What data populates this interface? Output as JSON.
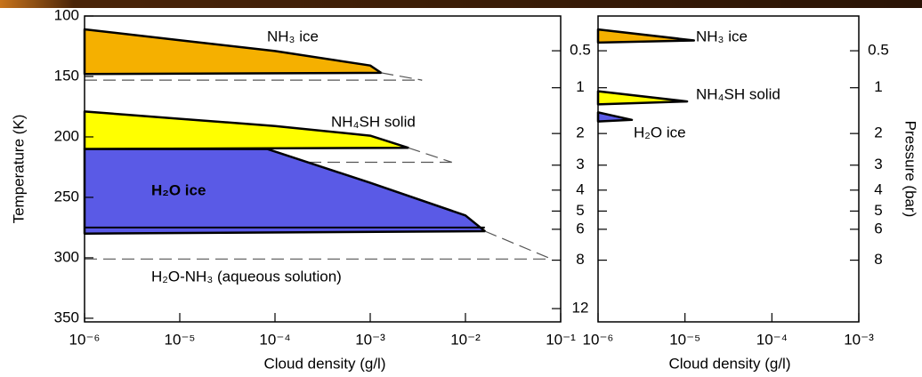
{
  "chart_data": [
    {
      "type": "area",
      "xlabel": "Cloud density (g/l)",
      "ylabel": "Temperature (K)",
      "y2label": "Pressure (bar)",
      "xscale": "log",
      "y2scale": "power",
      "xlim": [
        1e-06,
        0.1
      ],
      "xticks": [
        {
          "value": 1e-06,
          "label": "10⁻⁶"
        },
        {
          "value": 1e-05,
          "label": "10⁻⁵"
        },
        {
          "value": 0.0001,
          "label": "10⁻⁴"
        },
        {
          "value": 0.001,
          "label": "10⁻³"
        },
        {
          "value": 0.01,
          "label": "10⁻²"
        },
        {
          "value": 0.1,
          "label": "10⁻¹"
        }
      ],
      "ylim": [
        100,
        353
      ],
      "yticks": [
        100,
        150,
        200,
        250,
        300,
        350
      ],
      "y2lim": [
        0.22,
        13.3
      ],
      "y2ticks": [
        0.5,
        1,
        2,
        3,
        4,
        5,
        6,
        8,
        12
      ],
      "series": [
        {
          "name": "NH₃ ice",
          "style": "fill",
          "color": "#f5b000",
          "x": [
            1e-06,
            1e-05,
            0.0001,
            0.001,
            0.0013,
            1e-06
          ],
          "y": [
            111,
            120,
            129,
            141,
            147,
            148
          ]
        },
        {
          "style": "dashed",
          "color": "#555555",
          "x": [
            1e-06,
            0.0035
          ],
          "y": [
            153,
            153
          ]
        },
        {
          "style": "dashed",
          "color": "#555555",
          "x": [
            0.0013,
            0.0035
          ],
          "y": [
            147,
            153
          ]
        },
        {
          "name": "NH₄SH solid",
          "style": "fill",
          "color": "#ffff00",
          "x": [
            1e-06,
            1e-05,
            0.0001,
            0.001,
            0.0025,
            1e-06
          ],
          "y": [
            179,
            185,
            191,
            199,
            209,
            210
          ]
        },
        {
          "style": "dashed",
          "color": "#555555",
          "x": [
            1e-06,
            0.0072
          ],
          "y": [
            221,
            221
          ]
        },
        {
          "style": "dashed",
          "color": "#555555",
          "x": [
            0.0025,
            0.0072
          ],
          "y": [
            209,
            221
          ]
        },
        {
          "name": "H₂O ice",
          "style": "fill",
          "color": "#5a5ae6",
          "x": [
            1e-06,
            8.3e-05,
            0.001,
            0.01,
            0.016,
            1e-06
          ],
          "y": [
            210,
            210,
            238,
            265,
            278,
            280
          ]
        },
        {
          "style": "line",
          "color": "#000000",
          "x": [
            1e-06,
            0.016
          ],
          "y": [
            275,
            275
          ]
        },
        {
          "style": "dashed",
          "color": "#555555",
          "x": [
            0.016,
            0.08
          ],
          "y": [
            278,
            301
          ]
        },
        {
          "style": "dashed",
          "color": "#555555",
          "x": [
            1e-06,
            0.08
          ],
          "y": [
            301,
            301
          ]
        }
      ],
      "annotations": [
        "H₂O-NH₃ (aqueous solution)"
      ]
    },
    {
      "type": "area",
      "xlabel": "Cloud density (g/l)",
      "y2label": "Pressure (bar)",
      "xscale": "log",
      "y2scale": "power",
      "xlim": [
        1e-06,
        0.001
      ],
      "xticks": [
        {
          "value": 1e-06,
          "label": "10⁻⁶"
        },
        {
          "value": 1e-05,
          "label": "10⁻⁵"
        },
        {
          "value": 0.0001,
          "label": "10⁻⁴"
        },
        {
          "value": 0.001,
          "label": "10⁻³"
        }
      ],
      "y2lim": [
        0.22,
        13.3
      ],
      "y2ticks": [
        0.5,
        1,
        2,
        3,
        4,
        5,
        6,
        8
      ],
      "series": [
        {
          "name": "NH₃ ice",
          "style": "fill",
          "axis": "y2",
          "color": "#f5b000",
          "x": [
            1e-06,
            1.27e-05,
            1e-06
          ],
          "y": [
            0.31,
            0.4,
            0.42
          ]
        },
        {
          "name": "NH₄SH solid",
          "style": "fill",
          "axis": "y2",
          "color": "#ffff00",
          "x": [
            1e-06,
            1.06e-05,
            1e-06
          ],
          "y": [
            1.06,
            1.25,
            1.31
          ]
        },
        {
          "name": "H₂O ice",
          "style": "fill",
          "axis": "y2",
          "color": "#5a5ae6",
          "x": [
            1e-06,
            2.45e-06,
            1e-06
          ],
          "y": [
            1.48,
            1.65,
            1.69
          ]
        }
      ]
    }
  ]
}
